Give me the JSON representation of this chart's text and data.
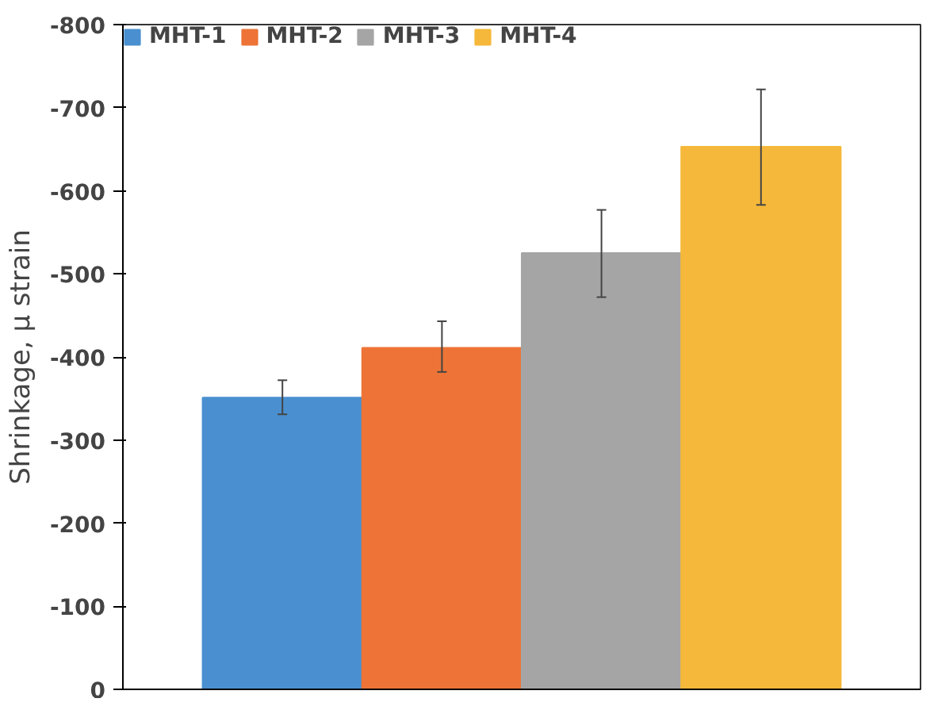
{
  "chart_data": {
    "type": "bar",
    "ylabel": "Shrinkage, µ strain",
    "categories": [
      null
    ],
    "series": [
      {
        "name": "MHT-1",
        "color": "#4a90d0",
        "values": [
          -351
        ],
        "errors": [
          [
            -372,
            -331
          ]
        ]
      },
      {
        "name": "MHT-2",
        "color": "#ed7436",
        "values": [
          -411
        ],
        "errors": [
          [
            -443,
            -382
          ]
        ]
      },
      {
        "name": "MHT-3",
        "color": "#a5a5a5",
        "values": [
          -525
        ],
        "errors": [
          [
            -577,
            -472
          ]
        ]
      },
      {
        "name": "MHT-4",
        "color": "#f5b83a",
        "values": [
          -653
        ],
        "errors": [
          [
            -722,
            -583
          ]
        ]
      }
    ],
    "ylim": [
      0,
      -800
    ],
    "yticks": [
      0,
      -100,
      -200,
      -300,
      -400,
      -500,
      -600,
      -700,
      -800
    ],
    "tick_labels": "y",
    "grid": false,
    "legend": "top left"
  }
}
